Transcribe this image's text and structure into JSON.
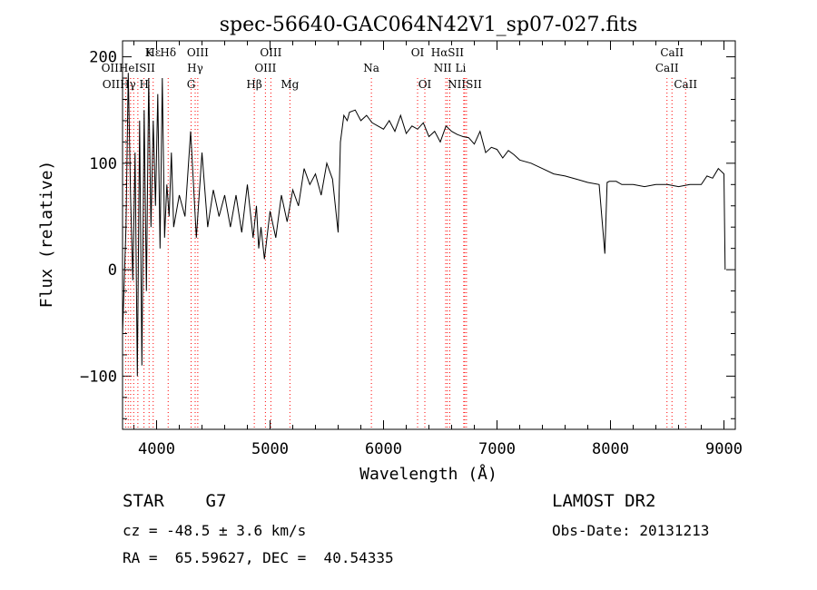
{
  "chart_data": {
    "type": "line",
    "title": "spec-56640-GAC064N42V1_sp07-027.fits",
    "xlabel": "Wavelength (Å)",
    "ylabel": "Flux (relative)",
    "xlim": [
      3700,
      9100
    ],
    "ylim": [
      -150,
      215
    ],
    "xticks": [
      4000,
      5000,
      6000,
      7000,
      8000,
      9000
    ],
    "yticks": [
      -100,
      0,
      100,
      200
    ],
    "grid": false,
    "line_color": "#000000",
    "marker_color": "#ff0000",
    "series": [
      {
        "x": [
          3700,
          3730,
          3750,
          3770,
          3790,
          3810,
          3830,
          3850,
          3870,
          3890,
          3910,
          3930,
          3950,
          3970,
          3990,
          4010,
          4030,
          4050,
          4070,
          4090,
          4110,
          4130,
          4150,
          4200,
          4250,
          4300,
          4350,
          4400,
          4450,
          4500,
          4550,
          4600,
          4650,
          4700,
          4750,
          4800,
          4850,
          4880,
          4900,
          4920,
          4950,
          5000,
          5050,
          5100,
          5150,
          5200,
          5250,
          5300,
          5350,
          5400,
          5450,
          5500,
          5550,
          5600,
          5620,
          5650,
          5680,
          5700,
          5750,
          5800,
          5850,
          5900,
          5950,
          6000,
          6050,
          6100,
          6150,
          6200,
          6250,
          6300,
          6350,
          6400,
          6450,
          6500,
          6550,
          6600,
          6650,
          6700,
          6750,
          6800,
          6850,
          6900,
          6950,
          7000,
          7050,
          7100,
          7150,
          7200,
          7300,
          7400,
          7500,
          7600,
          7700,
          7800,
          7900,
          7950,
          7970,
          7990,
          8050,
          8100,
          8200,
          8300,
          8400,
          8500,
          8600,
          8700,
          8800,
          8850,
          8900,
          8950,
          9000,
          9010
        ],
        "y": [
          -60,
          40,
          185,
          70,
          -10,
          110,
          -100,
          140,
          -90,
          150,
          -20,
          180,
          40,
          140,
          60,
          165,
          20,
          180,
          30,
          80,
          50,
          110,
          40,
          70,
          50,
          130,
          30,
          110,
          40,
          75,
          50,
          70,
          40,
          70,
          35,
          80,
          30,
          60,
          20,
          40,
          10,
          55,
          30,
          70,
          45,
          75,
          60,
          95,
          80,
          90,
          70,
          100,
          85,
          35,
          120,
          145,
          140,
          148,
          150,
          140,
          145,
          138,
          135,
          132,
          140,
          130,
          145,
          128,
          135,
          132,
          138,
          125,
          130,
          120,
          135,
          130,
          127,
          125,
          124,
          118,
          130,
          110,
          115,
          113,
          105,
          112,
          108,
          103,
          100,
          95,
          90,
          88,
          85,
          82,
          80,
          15,
          82,
          83,
          83,
          80,
          80,
          78,
          80,
          80,
          78,
          80,
          80,
          88,
          86,
          95,
          90,
          0
        ],
        "style": "solid"
      }
    ],
    "spectral_lines": [
      {
        "name": "Hε",
        "wavelength": 3970,
        "row": 1
      },
      {
        "name": "K",
        "wavelength": 3934,
        "row": 1
      },
      {
        "name": "Hδ",
        "wavelength": 4102,
        "row": 1
      },
      {
        "name": "OIII",
        "wavelength": 4363,
        "row": 1
      },
      {
        "name": "OIII",
        "wavelength": 5007,
        "row": 1
      },
      {
        "name": "OI",
        "wavelength": 6300,
        "row": 1
      },
      {
        "name": "HαSII",
        "wavelength": 6563,
        "row": 1
      },
      {
        "name": "CaII",
        "wavelength": 8542,
        "row": 1
      },
      {
        "name": "OIIHeISII",
        "wavelength": 3750,
        "row": 2
      },
      {
        "name": "Hγ",
        "wavelength": 4340,
        "row": 2
      },
      {
        "name": "OIII",
        "wavelength": 4959,
        "row": 2
      },
      {
        "name": "Na",
        "wavelength": 5893,
        "row": 2
      },
      {
        "name": "NII Li",
        "wavelength": 6584,
        "row": 2
      },
      {
        "name": "CaII",
        "wavelength": 8498,
        "row": 2
      },
      {
        "name": "OIIHγ H",
        "wavelength": 3727,
        "row": 3
      },
      {
        "name": "G",
        "wavelength": 4304,
        "row": 3
      },
      {
        "name": "Hβ",
        "wavelength": 4861,
        "row": 3
      },
      {
        "name": "Mg",
        "wavelength": 5175,
        "row": 3
      },
      {
        "name": "OI",
        "wavelength": 6364,
        "row": 3
      },
      {
        "name": "NIISII",
        "wavelength": 6716,
        "row": 3
      },
      {
        "name": "CaII",
        "wavelength": 8662,
        "row": 3
      }
    ],
    "marker_wavelengths": [
      3727,
      3750,
      3771,
      3798,
      3835,
      3889,
      3934,
      3970,
      4102,
      4304,
      4340,
      4363,
      4861,
      4959,
      5007,
      5175,
      5893,
      6300,
      6364,
      6548,
      6563,
      6584,
      6707,
      6716,
      6731,
      8498,
      8542,
      8662
    ]
  },
  "info": {
    "object_class": "STAR    G7",
    "survey": "LAMOST DR2",
    "redshift": "cz = -48.5 ± 3.6 km/s",
    "obs_date": "Obs-Date: 20131213",
    "coords": "RA =  65.59627, DEC =  40.54335"
  }
}
